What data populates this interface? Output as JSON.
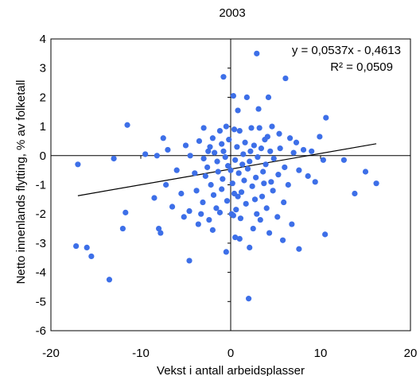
{
  "chart_data": {
    "type": "scatter",
    "title": "2003",
    "xlabel": "Vekst i antall arbeidsplasser",
    "ylabel": "Netto innenlands flytting, % av folketall",
    "xlim": [
      -20,
      20
    ],
    "ylim": [
      -6,
      4
    ],
    "xticks": [
      -20,
      -10,
      0,
      10,
      20
    ],
    "yticks": [
      -6,
      -5,
      -4,
      -3,
      -2,
      -1,
      0,
      1,
      2,
      3,
      4
    ],
    "grid": false,
    "point_color": "#3d6fe8",
    "trendline": {
      "slope": 0.0537,
      "intercept": -0.4613,
      "x_range": [
        -17,
        16.2
      ],
      "equation": "y = 0,0537x - 0,4613",
      "r_squared": "R² = 0,0509"
    },
    "points": [
      [
        2.9,
        3.5
      ],
      [
        6.1,
        2.65
      ],
      [
        -0.8,
        2.7
      ],
      [
        0.3,
        2.05
      ],
      [
        1.8,
        2.0
      ],
      [
        4.2,
        2.0
      ],
      [
        3.1,
        1.6
      ],
      [
        0.8,
        1.55
      ],
      [
        10.6,
        1.3
      ],
      [
        -11.5,
        1.05
      ],
      [
        -7.5,
        0.6
      ],
      [
        -3.0,
        0.95
      ],
      [
        -1.2,
        0.85
      ],
      [
        -0.5,
        1.0
      ],
      [
        0.4,
        0.9
      ],
      [
        1.0,
        0.85
      ],
      [
        2.3,
        0.95
      ],
      [
        3.2,
        0.95
      ],
      [
        3.8,
        0.55
      ],
      [
        4.6,
        1.0
      ],
      [
        5.4,
        0.75
      ],
      [
        6.6,
        0.6
      ],
      [
        7.3,
        0.45
      ],
      [
        9.9,
        0.65
      ],
      [
        -5.0,
        0.35
      ],
      [
        -7.0,
        0.2
      ],
      [
        -9.5,
        0.05
      ],
      [
        -8.2,
        0.0
      ],
      [
        -13.0,
        -0.1
      ],
      [
        -17.0,
        -0.3
      ],
      [
        -3.5,
        0.5
      ],
      [
        -2.0,
        0.6
      ],
      [
        -1.0,
        0.4
      ],
      [
        -0.2,
        0.55
      ],
      [
        0.7,
        0.3
      ],
      [
        1.6,
        0.45
      ],
      [
        2.6,
        0.35
      ],
      [
        3.4,
        0.25
      ],
      [
        4.4,
        0.15
      ],
      [
        5.5,
        0.25
      ],
      [
        7.0,
        0.1
      ],
      [
        8.1,
        0.2
      ],
      [
        9.0,
        0.15
      ],
      [
        10.3,
        -0.15
      ],
      [
        12.6,
        -0.15
      ],
      [
        15.0,
        -0.55
      ],
      [
        16.2,
        -0.95
      ],
      [
        13.8,
        -1.3
      ],
      [
        -4.5,
        0.0
      ],
      [
        -3.0,
        -0.1
      ],
      [
        -1.8,
        0.1
      ],
      [
        -0.6,
        -0.05
      ],
      [
        0.5,
        -0.15
      ],
      [
        1.4,
        0.05
      ],
      [
        2.1,
        -0.2
      ],
      [
        3.0,
        -0.05
      ],
      [
        3.9,
        -0.3
      ],
      [
        4.8,
        -0.1
      ],
      [
        6.0,
        -0.4
      ],
      [
        7.6,
        -0.5
      ],
      [
        8.6,
        -0.7
      ],
      [
        9.4,
        -0.9
      ],
      [
        -6.0,
        -0.5
      ],
      [
        -4.0,
        -0.6
      ],
      [
        -2.6,
        -0.4
      ],
      [
        -1.4,
        -0.55
      ],
      [
        -0.3,
        -0.35
      ],
      [
        0.9,
        -0.6
      ],
      [
        1.9,
        -0.45
      ],
      [
        2.8,
        -0.75
      ],
      [
        3.6,
        -0.55
      ],
      [
        4.5,
        -0.9
      ],
      [
        5.3,
        -0.65
      ],
      [
        6.4,
        -1.0
      ],
      [
        -7.2,
        -1.0
      ],
      [
        -5.5,
        -1.3
      ],
      [
        -3.8,
        -1.2
      ],
      [
        -2.2,
        -1.0
      ],
      [
        -1.0,
        -1.15
      ],
      [
        0.2,
        -0.95
      ],
      [
        1.2,
        -1.25
      ],
      [
        2.4,
        -1.05
      ],
      [
        3.5,
        -1.4
      ],
      [
        4.7,
        -1.2
      ],
      [
        5.9,
        -1.6
      ],
      [
        -8.5,
        -1.45
      ],
      [
        -6.5,
        -1.75
      ],
      [
        -4.6,
        -1.9
      ],
      [
        -3.1,
        -1.6
      ],
      [
        -1.6,
        -1.8
      ],
      [
        -0.4,
        -1.55
      ],
      [
        0.6,
        -1.85
      ],
      [
        1.7,
        -1.65
      ],
      [
        2.9,
        -2.0
      ],
      [
        4.0,
        -1.8
      ],
      [
        5.2,
        -2.1
      ],
      [
        6.8,
        -2.35
      ],
      [
        -11.7,
        -1.95
      ],
      [
        -12.0,
        -2.5
      ],
      [
        -8.0,
        -2.5
      ],
      [
        -7.8,
        -2.65
      ],
      [
        -5.2,
        -2.1
      ],
      [
        -3.6,
        -2.35
      ],
      [
        -2.4,
        -2.2
      ],
      [
        0.1,
        -2.0
      ],
      [
        0.3,
        -2.05
      ],
      [
        1.1,
        -2.15
      ],
      [
        2.5,
        -2.5
      ],
      [
        3.3,
        -2.2
      ],
      [
        4.3,
        -2.65
      ],
      [
        5.8,
        -2.9
      ],
      [
        10.5,
        -2.7
      ],
      [
        -17.2,
        -3.1
      ],
      [
        -16.0,
        -3.15
      ],
      [
        -15.5,
        -3.45
      ],
      [
        -13.5,
        -4.25
      ],
      [
        -4.6,
        -3.6
      ],
      [
        -2.0,
        -2.55
      ],
      [
        -0.5,
        -3.3
      ],
      [
        0.5,
        -2.8
      ],
      [
        1.0,
        -2.85
      ],
      [
        2.1,
        -3.15
      ],
      [
        7.6,
        -3.2
      ],
      [
        2.0,
        -4.9
      ],
      [
        -2.5,
        0.15
      ],
      [
        -1.5,
        -0.2
      ],
      [
        -0.8,
        0.15
      ],
      [
        0.0,
        -0.5
      ],
      [
        1.3,
        -0.3
      ],
      [
        2.2,
        0.15
      ],
      [
        -2.8,
        -0.7
      ],
      [
        -1.9,
        -1.35
      ],
      [
        -0.9,
        -0.8
      ],
      [
        0.4,
        -1.3
      ],
      [
        1.5,
        -0.85
      ],
      [
        2.7,
        -1.5
      ],
      [
        -3.3,
        -2.0
      ],
      [
        -1.2,
        -1.95
      ],
      [
        0.8,
        -1.4
      ],
      [
        3.7,
        -0.95
      ],
      [
        4.1,
        0.65
      ],
      [
        -2.3,
        0.3
      ]
    ]
  }
}
